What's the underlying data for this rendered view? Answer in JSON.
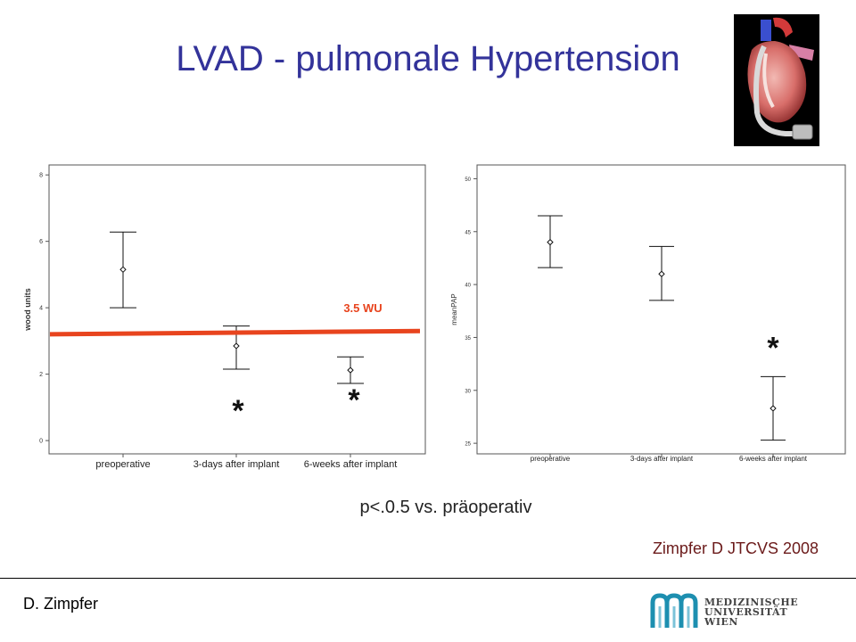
{
  "title": "LVAD - pulmonale Hypertension",
  "p_text": "p<.0.5 vs. präoperativ",
  "citation": "Zimpfer D JTCVS 2008",
  "author": "D. Zimpfer",
  "logo": {
    "lines": [
      "MEDIZINISCHE",
      "UNIVERSITÄT",
      "WIEN"
    ]
  },
  "colors": {
    "title": "#33339a",
    "threshold": "#e8441e",
    "citation": "#6b1a1a",
    "logo": "#1d8fb0"
  },
  "chart_data": [
    {
      "type": "scatter",
      "subtype": "mean-with-error-bars",
      "categories": [
        "preoperative",
        "3-days after implant",
        "6-weeks after implant"
      ],
      "values": [
        5.15,
        2.85,
        2.12
      ],
      "error_low": [
        4.0,
        2.15,
        1.72
      ],
      "error_high": [
        6.28,
        3.45,
        2.52
      ],
      "ylabel": "wood units",
      "yticks": [
        0,
        2,
        4,
        6,
        8
      ],
      "ylim": [
        -0.4,
        8.3
      ],
      "threshold": {
        "label": "3.5 WU",
        "y_start": 3.2,
        "y_end": 3.3
      },
      "significance": [
        false,
        true,
        true
      ],
      "marker": "*"
    },
    {
      "type": "scatter",
      "subtype": "mean-with-error-bars",
      "categories": [
        "preoperative",
        "3-days after implant",
        "6-weeks after implant"
      ],
      "values": [
        44.0,
        41.0,
        28.3
      ],
      "error_low": [
        41.6,
        38.5,
        25.3
      ],
      "error_high": [
        46.5,
        43.6,
        31.3
      ],
      "ylabel": "meanPAP",
      "yticks": [
        25,
        30,
        35,
        40,
        45,
        50
      ],
      "ylim": [
        24,
        51.3
      ],
      "significance": [
        false,
        false,
        true
      ],
      "marker": "*"
    }
  ]
}
